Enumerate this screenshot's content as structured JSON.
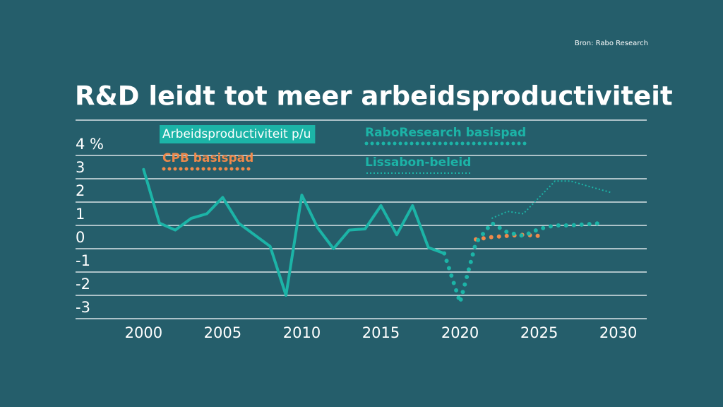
{
  "source": "Bron: Rabo Research",
  "chart_data": {
    "type": "line",
    "title": "R&D leidt tot meer arbeidsproductiviteit",
    "xlim": [
      1995.7,
      2031.8
    ],
    "xticks": [
      2000,
      2005,
      2010,
      2015,
      2020,
      2025,
      2030
    ],
    "ylim": [
      -3,
      4
    ],
    "yticks": [
      -3,
      -2,
      -1,
      0,
      1,
      2,
      3,
      {
        "value": 4,
        "label": "4 %"
      }
    ],
    "grid": true,
    "series": [
      {
        "name": "Arbeidsproductiviteit p/u",
        "color": "#1cb4a7",
        "style": "solid",
        "x": [
          2000,
          2001,
          2002,
          2003,
          2004,
          2005,
          2006,
          2007,
          2008,
          2009,
          2010,
          2011,
          2012,
          2013,
          2014,
          2015,
          2016,
          2017,
          2018,
          2019
        ],
        "values": [
          3.4,
          1.1,
          0.8,
          1.3,
          1.5,
          2.2,
          1.1,
          0.6,
          0.1,
          -2.0,
          2.3,
          0.9,
          0.0,
          0.8,
          0.85,
          1.85,
          0.6,
          1.85,
          0.05,
          -0.2
        ]
      },
      {
        "name": "CPB basispad",
        "color": "#f08a4b",
        "style": "dots",
        "x": [
          2021,
          2022,
          2023,
          2024,
          2025
        ],
        "values": [
          0.4,
          0.5,
          0.55,
          0.6,
          0.55
        ]
      },
      {
        "name": "RaboResearch basispad",
        "color": "#1cb4a7",
        "style": "dots",
        "x": [
          2019,
          2020,
          2021,
          2022,
          2023,
          2024,
          2025,
          2026,
          2027,
          2028,
          2029
        ],
        "values": [
          -0.2,
          -2.3,
          0.25,
          1.1,
          0.7,
          0.55,
          0.85,
          1.0,
          1.0,
          1.05,
          1.1
        ]
      },
      {
        "name": "Lissabon-beleid",
        "color": "#1cb4a7",
        "style": "fine-dots",
        "x": [
          2022,
          2023,
          2024,
          2025,
          2026,
          2027,
          2028,
          2029.6
        ],
        "values": [
          1.3,
          1.6,
          1.5,
          2.2,
          2.9,
          2.9,
          2.7,
          2.4
        ]
      }
    ]
  }
}
